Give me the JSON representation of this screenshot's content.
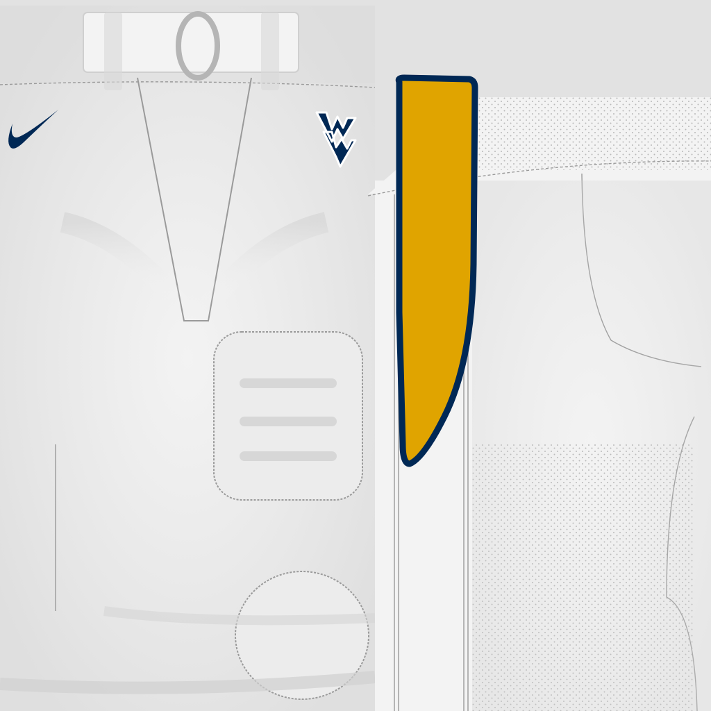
{
  "texture": {
    "garment": "football-pants",
    "view": "uv-texture-layout",
    "colors": {
      "background": "#e2e2e2",
      "fabric": "#f3f3f3",
      "fabric_shadow": "#d9d9d9",
      "stitch": "#9a9a9a",
      "navy": "#002855",
      "gold": "#e0a400",
      "mesh_dot": "#b9b9b9"
    }
  },
  "logos": {
    "brand_swoosh": {
      "icon": "swoosh-logo-icon",
      "color": "#002855"
    },
    "team_mark": {
      "icon": "flying-wv-logo-icon",
      "text": "WV",
      "color": "#002855",
      "outline": "#ffffff"
    }
  },
  "stripe": {
    "icon": "gold-stripe-panel",
    "fill": "#e0a400",
    "outline": "#002855"
  },
  "pads": [
    {
      "name": "thigh-pad-pocket",
      "shape": "rounded-rect"
    },
    {
      "name": "knee-pad-pocket",
      "shape": "oval"
    }
  ]
}
